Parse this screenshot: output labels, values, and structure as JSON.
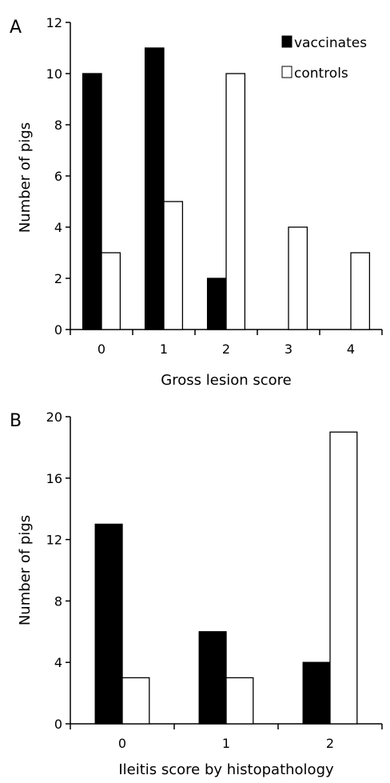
{
  "chart_data": [
    {
      "panel": "A",
      "type": "bar",
      "categories": [
        "0",
        "1",
        "2",
        "3",
        "4"
      ],
      "series": [
        {
          "name": "vaccinates",
          "color": "#000000",
          "values": [
            10,
            11,
            2,
            0,
            0
          ]
        },
        {
          "name": "controls",
          "color": "#ffffff",
          "values": [
            3,
            5,
            10,
            4,
            3
          ]
        }
      ],
      "xlabel": "Gross lesion score",
      "ylabel": "Number of pigs",
      "ylim": [
        0,
        12
      ],
      "yticks": [
        "0",
        "2",
        "4",
        "6",
        "8",
        "10",
        "12"
      ],
      "legend": "top-right",
      "grid": false
    },
    {
      "panel": "B",
      "type": "bar",
      "categories": [
        "0",
        "1",
        "2"
      ],
      "series": [
        {
          "name": "vaccinates",
          "color": "#000000",
          "values": [
            13,
            6,
            4
          ]
        },
        {
          "name": "controls",
          "color": "#ffffff",
          "values": [
            3,
            3,
            19
          ]
        }
      ],
      "xlabel": "Ileitis score by histopathology",
      "ylabel": "Number of pigs",
      "ylim": [
        0,
        20
      ],
      "yticks": [
        "0",
        "4",
        "8",
        "12",
        "16",
        "20"
      ],
      "legend": "none",
      "grid": false
    }
  ]
}
